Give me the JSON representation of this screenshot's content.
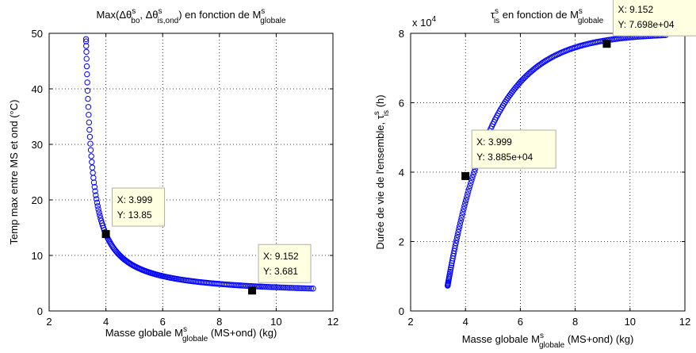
{
  "chart_data": [
    {
      "type": "scatter",
      "title_parts": [
        "Max(Δθ",
        "s",
        "bo",
        ", Δθ",
        "s",
        "is,ond",
        ") en fonction de M",
        "s",
        "globale"
      ],
      "xlabel_parts": [
        "Masse  globale M",
        "s",
        "globale",
        " (MS+ond) (kg)"
      ],
      "ylabel": "Temp max entre MS et ond (°C)",
      "xlim": [
        2,
        12
      ],
      "ylim": [
        0,
        50
      ],
      "xticks": [
        "2",
        "4",
        "6",
        "8",
        "10",
        "12"
      ],
      "yticks": [
        "0",
        "10",
        "20",
        "30",
        "40",
        "50"
      ],
      "grid": true,
      "marker_color": "#0000ff",
      "curve": "hyperbolic",
      "x_range": [
        3.3,
        11.3
      ],
      "datatips": [
        {
          "x": 3.999,
          "y": 13.85,
          "x_label": "X: 3.999",
          "y_label": "Y: 13.85"
        },
        {
          "x": 9.152,
          "y": 3.681,
          "x_label": "X: 9.152",
          "y_label": "Y: 3.681"
        }
      ]
    },
    {
      "type": "scatter",
      "title_parts": [
        "τ",
        "s",
        "is",
        " en fonction de M",
        "s",
        "globale"
      ],
      "xlabel_parts": [
        "Masse  globale M",
        "s",
        "globale",
        " (MS+ond) (kg)"
      ],
      "ylabel_parts": [
        "Durée de vie de l'ensemble, τ",
        "s",
        "is",
        " (h)"
      ],
      "multiplier": "x 10",
      "multiplier_exp": "4",
      "xlim": [
        2,
        12
      ],
      "ylim": [
        0,
        80000
      ],
      "xticks": [
        "2",
        "4",
        "6",
        "8",
        "10",
        "12"
      ],
      "yticks": [
        "0",
        "2",
        "4",
        "6",
        "8"
      ],
      "grid": true,
      "marker_color": "#0000ff",
      "curve": "saturating",
      "x_range": [
        3.35,
        11.3
      ],
      "datatips": [
        {
          "x": 3.999,
          "y": 38850,
          "x_label": "X: 3.999",
          "y_label": "Y: 3.885e+04"
        },
        {
          "x": 9.152,
          "y": 76980,
          "x_label": "X: 9.152",
          "y_label": "Y: 7.698e+04"
        }
      ]
    }
  ]
}
